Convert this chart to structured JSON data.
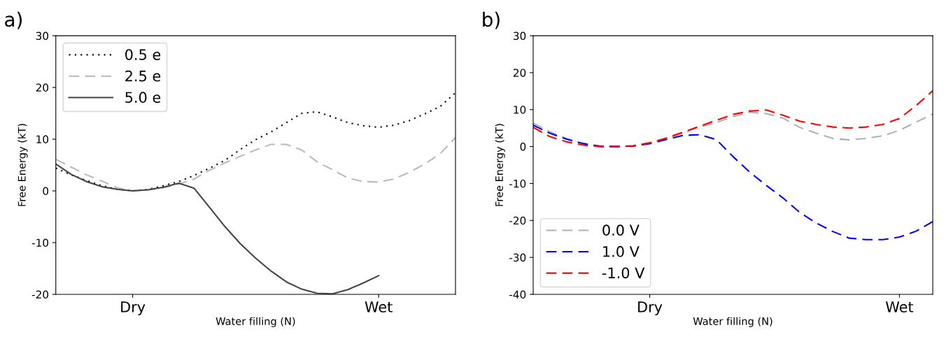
{
  "chart_data": [
    {
      "type": "line",
      "title": "a)",
      "xlabel": "Water filling (N)",
      "ylabel": "Free Energy (kT)",
      "categories": [
        null,
        null,
        null,
        null,
        null,
        "Dry",
        null,
        null,
        null,
        null,
        null,
        null,
        null,
        null,
        null,
        null,
        null,
        null,
        null,
        null,
        null,
        "Wet",
        null,
        null,
        null,
        null,
        null
      ],
      "ylim": [
        -20,
        30
      ],
      "yticks": [
        -20,
        -10,
        0,
        10,
        20,
        30
      ],
      "grid": false,
      "legend": "top left",
      "series": [
        {
          "name": "0.5 e",
          "color": "#000000",
          "line_style": "dotted",
          "values": [
            4.4,
            3.1,
            2.0,
            1.0,
            0.3,
            0,
            0.3,
            1.0,
            1.8,
            3.0,
            4.4,
            5.9,
            8.0,
            9.9,
            11.4,
            13.2,
            15.0,
            15.3,
            14.3,
            13.2,
            12.6,
            12.3,
            12.7,
            13.6,
            14.9,
            16.3,
            19.0
          ]
        },
        {
          "name": "2.5 e",
          "color": "#bbbbbb",
          "line_style": "dashed",
          "values": [
            6.1,
            4.6,
            3.1,
            1.9,
            0.6,
            0,
            0.2,
            0.6,
            1.3,
            2.3,
            4.0,
            5.4,
            6.7,
            7.9,
            9.0,
            9.0,
            7.9,
            5.6,
            4.1,
            2.5,
            1.8,
            1.7,
            2.3,
            3.6,
            5.2,
            7.2,
            10.3
          ]
        },
        {
          "name": "5.0 e",
          "color": "#444444",
          "line_style": "solid",
          "values": [
            5.2,
            3.2,
            1.8,
            0.8,
            0.3,
            0,
            0.2,
            0.7,
            1.5,
            0.5,
            -3.2,
            -6.9,
            -10.2,
            -13.0,
            -15.5,
            -17.6,
            -19.0,
            -19.8,
            -19.9,
            -19.1,
            -17.8,
            -16.4,
            null,
            null,
            null,
            null,
            null
          ]
        }
      ]
    },
    {
      "type": "line",
      "title": "b)",
      "xlabel": "Water filling (N)",
      "ylabel": "Free Energy (kT)",
      "categories": [
        null,
        null,
        null,
        null,
        null,
        null,
        null,
        "Dry",
        null,
        null,
        null,
        null,
        null,
        null,
        null,
        null,
        null,
        null,
        null,
        null,
        null,
        null,
        "Wet",
        null,
        null
      ],
      "ylim": [
        -40,
        30
      ],
      "yticks": [
        -40,
        -30,
        -20,
        -10,
        0,
        10,
        20,
        30
      ],
      "grid": false,
      "legend": "bottom left",
      "series": [
        {
          "name": "0.0 V",
          "color": "#b0b0b0",
          "line_style": "dashed",
          "values": [
            6.4,
            4.0,
            2.2,
            0.9,
            0.1,
            0,
            0.2,
            1.0,
            2.2,
            3.6,
            5.3,
            6.5,
            8.1,
            9.3,
            8.9,
            7.7,
            5.2,
            3.6,
            2.2,
            1.8,
            2.2,
            2.9,
            4.4,
            6.6,
            8.8
          ]
        },
        {
          "name": "1.0 V",
          "color": "#0000ff",
          "line_style": "dashed",
          "values": [
            5.8,
            3.6,
            2.0,
            0.8,
            0.1,
            0,
            0.1,
            0.8,
            1.9,
            3.0,
            3.2,
            1.9,
            -2.7,
            -6.9,
            -10.5,
            -13.9,
            -17.8,
            -20.7,
            -23.0,
            -24.8,
            -25.2,
            -25.2,
            -24.5,
            -22.9,
            -20.3
          ]
        },
        {
          "name": "-1.0 V",
          "color": "#ff0000",
          "line_style": "dashed",
          "values": [
            5.2,
            2.7,
            1.3,
            0.4,
            0.0,
            0,
            0.2,
            1.0,
            2.3,
            3.9,
            5.5,
            7.1,
            8.7,
            9.6,
            9.9,
            8.5,
            6.9,
            6.0,
            5.3,
            5.0,
            5.3,
            6.0,
            7.6,
            11.1,
            15.1
          ]
        }
      ]
    }
  ]
}
